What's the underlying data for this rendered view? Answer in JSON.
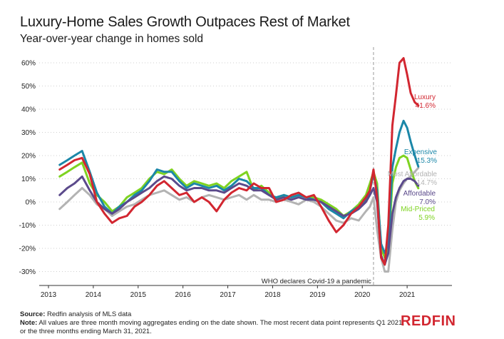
{
  "title": "Luxury-Home Sales Growth Outpaces Rest of Market",
  "subtitle": "Year-over-year change in homes sold",
  "footer": {
    "source_label": "Source:",
    "source_text": " Redfin analysis of MLS data",
    "note_label": "Note:",
    "note_text": " All values are three month moving aggregates ending on the date shown. The most recent data point represents Q1 2021, or the three months ending March 31, 2021."
  },
  "logo_text": "REDFIN",
  "chart_data": {
    "type": "line",
    "title": "Luxury-Home Sales Growth Outpaces Rest of Market",
    "subtitle": "Year-over-year change in homes sold",
    "xlabel": "",
    "ylabel": "",
    "xlim": [
      2013.0,
      2022.0
    ],
    "ylim": [
      -35,
      65
    ],
    "x_ticks": [
      "2013",
      "2014",
      "2015",
      "2016",
      "2017",
      "2018",
      "2019",
      "2020",
      "2021"
    ],
    "y_ticks": [
      "60%",
      "50%",
      "40%",
      "30%",
      "20%",
      "10%",
      "0%",
      "-10%",
      "-20%",
      "-30%"
    ],
    "grid": "horizontal-dotted",
    "annotation": {
      "x": 2020.25,
      "text": "WHO declares Covid-19 a pandemic",
      "style": "dashed-vertical-line"
    },
    "series": [
      {
        "name": "Most Affordable",
        "end_label": "14.7%",
        "color": "#b3b3b3",
        "x": [
          2013.25,
          2013.42,
          2013.58,
          2013.75,
          2013.92,
          2014.08,
          2014.25,
          2014.42,
          2014.58,
          2014.75,
          2014.92,
          2015.08,
          2015.25,
          2015.42,
          2015.58,
          2015.75,
          2015.92,
          2016.08,
          2016.25,
          2016.42,
          2016.58,
          2016.75,
          2016.92,
          2017.08,
          2017.25,
          2017.42,
          2017.58,
          2017.75,
          2017.92,
          2018.08,
          2018.25,
          2018.42,
          2018.58,
          2018.75,
          2018.92,
          2019.08,
          2019.25,
          2019.42,
          2019.58,
          2019.75,
          2019.92,
          2020.08,
          2020.17,
          2020.25,
          2020.33,
          2020.42,
          2020.5,
          2020.58,
          2020.67,
          2020.75,
          2020.83,
          2020.92,
          2021.0,
          2021.08,
          2021.17,
          2021.25
        ],
        "values": [
          -3,
          0,
          3,
          6,
          3,
          -1,
          -3,
          -6,
          -4,
          -2,
          -1,
          1,
          3,
          4,
          5,
          3,
          1,
          2,
          0,
          2,
          3,
          2,
          1,
          2,
          3,
          1,
          3,
          1,
          1,
          0,
          1,
          0,
          -1,
          1,
          0,
          -2,
          -5,
          -8,
          -9,
          -7,
          -8,
          -4,
          -2,
          2,
          -12,
          -24,
          -30,
          -30,
          -12,
          0,
          5,
          8,
          10,
          11,
          13,
          14.7
        ]
      },
      {
        "name": "Mid-Priced",
        "end_label": "5.9%",
        "color": "#7ed321",
        "x": [
          2013.25,
          2013.42,
          2013.58,
          2013.75,
          2013.92,
          2014.08,
          2014.25,
          2014.42,
          2014.58,
          2014.75,
          2014.92,
          2015.08,
          2015.25,
          2015.42,
          2015.58,
          2015.75,
          2015.92,
          2016.08,
          2016.25,
          2016.42,
          2016.58,
          2016.75,
          2016.92,
          2017.08,
          2017.25,
          2017.42,
          2017.58,
          2017.75,
          2017.92,
          2018.08,
          2018.25,
          2018.42,
          2018.58,
          2018.75,
          2018.92,
          2019.08,
          2019.25,
          2019.42,
          2019.58,
          2019.75,
          2019.92,
          2020.08,
          2020.17,
          2020.25,
          2020.33,
          2020.42,
          2020.5,
          2020.58,
          2020.67,
          2020.75,
          2020.83,
          2020.92,
          2021.0,
          2021.08,
          2021.17,
          2021.25
        ],
        "values": [
          11,
          13,
          15,
          17,
          8,
          3,
          0,
          -4,
          -2,
          2,
          4,
          6,
          10,
          13,
          12,
          14,
          10,
          7,
          9,
          8,
          7,
          8,
          6,
          9,
          11,
          13,
          5,
          7,
          4,
          1,
          3,
          2,
          3,
          2,
          2,
          1,
          -1,
          -3,
          -6,
          -4,
          -1,
          3,
          8,
          13,
          8,
          -20,
          -24,
          -20,
          8,
          15,
          19,
          20,
          19,
          14,
          9,
          5.9
        ]
      },
      {
        "name": "Expensive",
        "end_label": "15.3%",
        "color": "#1b87a8",
        "x": [
          2013.25,
          2013.42,
          2013.58,
          2013.75,
          2013.92,
          2014.08,
          2014.25,
          2014.42,
          2014.58,
          2014.75,
          2014.92,
          2015.08,
          2015.25,
          2015.42,
          2015.58,
          2015.75,
          2015.92,
          2016.08,
          2016.25,
          2016.42,
          2016.58,
          2016.75,
          2016.92,
          2017.08,
          2017.25,
          2017.42,
          2017.58,
          2017.75,
          2017.92,
          2018.08,
          2018.25,
          2018.42,
          2018.58,
          2018.75,
          2018.92,
          2019.08,
          2019.25,
          2019.42,
          2019.58,
          2019.75,
          2019.92,
          2020.08,
          2020.17,
          2020.25,
          2020.33,
          2020.42,
          2020.5,
          2020.58,
          2020.67,
          2020.75,
          2020.83,
          2020.92,
          2021.0,
          2021.08,
          2021.17,
          2021.25
        ],
        "values": [
          16,
          18,
          20,
          22,
          13,
          4,
          -2,
          -5,
          -2,
          0,
          3,
          5,
          9,
          14,
          13,
          13,
          9,
          6,
          8,
          7,
          6,
          7,
          5,
          7,
          10,
          9,
          6,
          6,
          3,
          2,
          3,
          2,
          3,
          2,
          1,
          0,
          -3,
          -5,
          -7,
          -4,
          -2,
          1,
          5,
          12,
          5,
          -18,
          -22,
          -18,
          15,
          23,
          30,
          35,
          32,
          26,
          20,
          15.3
        ]
      },
      {
        "name": "Affordable",
        "end_label": "7.0%",
        "color": "#5b4a8b",
        "x": [
          2013.25,
          2013.42,
          2013.58,
          2013.75,
          2013.92,
          2014.08,
          2014.25,
          2014.42,
          2014.58,
          2014.75,
          2014.92,
          2015.08,
          2015.25,
          2015.42,
          2015.58,
          2015.75,
          2015.92,
          2016.08,
          2016.25,
          2016.42,
          2016.58,
          2016.75,
          2016.92,
          2017.08,
          2017.25,
          2017.42,
          2017.58,
          2017.75,
          2017.92,
          2018.08,
          2018.25,
          2018.42,
          2018.58,
          2018.75,
          2018.92,
          2019.08,
          2019.25,
          2019.42,
          2019.58,
          2019.75,
          2019.92,
          2020.08,
          2020.17,
          2020.25,
          2020.33,
          2020.42,
          2020.5,
          2020.58,
          2020.67,
          2020.75,
          2020.83,
          2020.92,
          2021.0,
          2021.08,
          2021.17,
          2021.25
        ],
        "values": [
          3,
          6,
          8,
          11,
          5,
          0,
          -3,
          -5,
          -3,
          0,
          2,
          4,
          6,
          9,
          11,
          10,
          7,
          5,
          6,
          6,
          5,
          5,
          4,
          6,
          8,
          7,
          5,
          5,
          3,
          1,
          2,
          1,
          2,
          1,
          1,
          0,
          -2,
          -4,
          -6,
          -5,
          -3,
          0,
          3,
          6,
          0,
          -23,
          -27,
          -22,
          -5,
          2,
          6,
          9,
          10,
          10,
          9,
          7.0
        ]
      },
      {
        "name": "Luxury",
        "end_label": "41.6%",
        "color": "#d22630",
        "x": [
          2013.25,
          2013.42,
          2013.58,
          2013.75,
          2013.92,
          2014.08,
          2014.25,
          2014.42,
          2014.58,
          2014.75,
          2014.92,
          2015.08,
          2015.25,
          2015.42,
          2015.58,
          2015.75,
          2015.92,
          2016.08,
          2016.25,
          2016.42,
          2016.58,
          2016.75,
          2016.92,
          2017.08,
          2017.25,
          2017.42,
          2017.58,
          2017.75,
          2017.92,
          2018.08,
          2018.25,
          2018.42,
          2018.58,
          2018.75,
          2018.92,
          2019.08,
          2019.25,
          2019.42,
          2019.58,
          2019.75,
          2019.92,
          2020.08,
          2020.17,
          2020.25,
          2020.33,
          2020.42,
          2020.5,
          2020.58,
          2020.67,
          2020.75,
          2020.83,
          2020.92,
          2021.0,
          2021.08,
          2021.17,
          2021.25
        ],
        "values": [
          14,
          16,
          18,
          19,
          12,
          0,
          -5,
          -9,
          -7,
          -6,
          -2,
          0,
          3,
          7,
          9,
          6,
          3,
          4,
          0,
          2,
          0,
          -4,
          1,
          4,
          6,
          5,
          8,
          6,
          6,
          0,
          1,
          3,
          4,
          2,
          3,
          -2,
          -8,
          -13,
          -10,
          -5,
          -2,
          2,
          5,
          14,
          2,
          -24,
          -27,
          -10,
          33,
          46,
          60,
          62,
          55,
          47,
          43,
          41.6
        ]
      }
    ]
  }
}
